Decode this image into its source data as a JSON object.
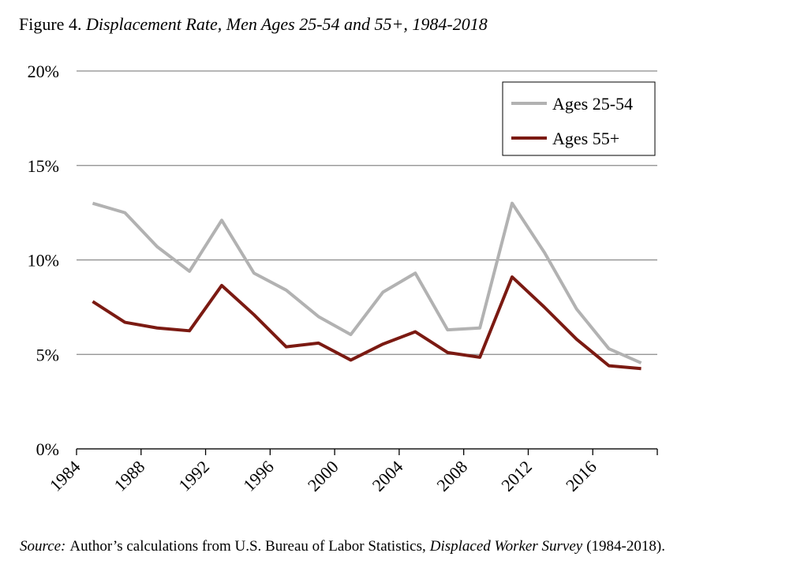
{
  "chart_data": {
    "type": "line",
    "title": {
      "label": "Figure 4.",
      "text": "Displacement Rate, Men Ages 25-54 and 55+, 1984-2018"
    },
    "source": [
      {
        "text": "Source:",
        "italic": true
      },
      {
        "text": "Author’s calculations from U.S. Bureau of Labor Statistics,",
        "italic": false
      },
      {
        "text": "Displaced Worker Survey",
        "italic": true
      },
      {
        "text": "(1984-2018).",
        "italic": false
      }
    ],
    "x": [
      1985,
      1987,
      1989,
      1991,
      1993,
      1995,
      1997,
      1999,
      2001,
      2003,
      2005,
      2007,
      2009,
      2011,
      2013,
      2015,
      2017,
      2019
    ],
    "series": [
      {
        "name": "Ages 25-54",
        "color": "#b2b2b2",
        "values": [
          13.0,
          12.5,
          10.7,
          9.4,
          12.1,
          9.3,
          8.4,
          7.0,
          6.05,
          8.3,
          9.3,
          6.3,
          6.4,
          13.0,
          10.4,
          7.4,
          5.3,
          4.55
        ]
      },
      {
        "name": "Ages 55+",
        "color": "#7b1a12",
        "values": [
          7.8,
          6.7,
          6.4,
          6.25,
          8.65,
          7.1,
          5.4,
          5.6,
          4.7,
          5.55,
          6.2,
          5.1,
          4.85,
          9.1,
          7.5,
          5.8,
          4.4,
          4.25
        ]
      }
    ],
    "xlim": [
      1984,
      2020
    ],
    "xticks": [
      1984,
      1988,
      1992,
      1996,
      2000,
      2004,
      2008,
      2012,
      2016
    ],
    "ylim": [
      0,
      20
    ],
    "yticks": [
      {
        "value": 0,
        "label": "0%"
      },
      {
        "value": 5,
        "label": "5%"
      },
      {
        "value": 10,
        "label": "10%"
      },
      {
        "value": 15,
        "label": "15%"
      },
      {
        "value": 20,
        "label": "20%"
      }
    ],
    "grid": true,
    "legend": "upper right"
  }
}
